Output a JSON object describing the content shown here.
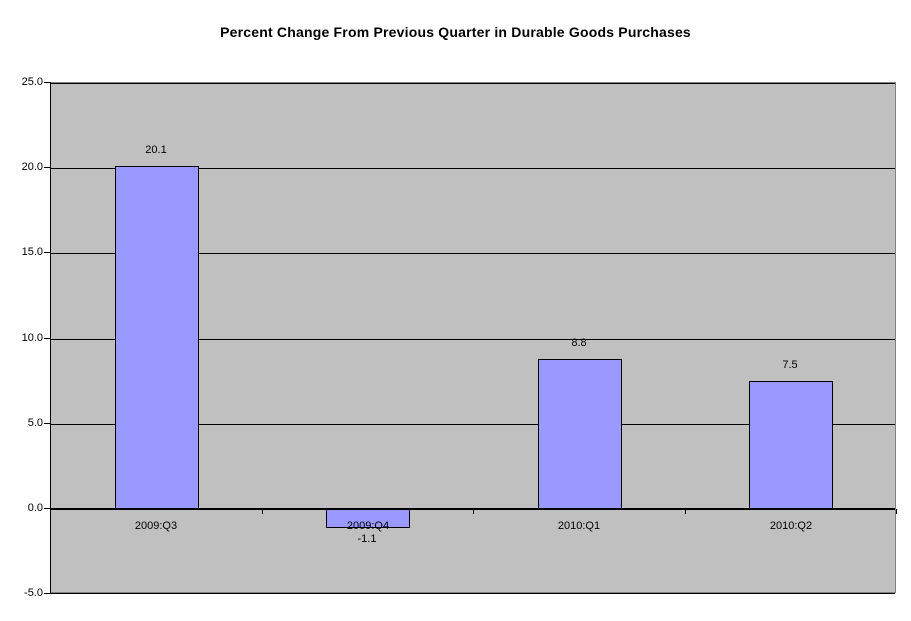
{
  "chart_data": {
    "type": "bar",
    "title": "Percent Change From Previous Quarter in Durable Goods Purchases",
    "categories": [
      "2009:Q3",
      "2009:Q4",
      "2010:Q1",
      "2010:Q2"
    ],
    "values": [
      20.1,
      -1.1,
      8.8,
      7.5
    ],
    "value_labels": [
      "20.1",
      "-1.1",
      "8.8",
      "7.5"
    ],
    "xlabel": "",
    "ylabel": "",
    "ylim": [
      -5,
      25
    ],
    "ytick_step": 5,
    "ytick_labels": [
      "25.0",
      "20.0",
      "15.0",
      "10.0",
      "5.0",
      "0.0",
      "-5.0"
    ],
    "grid": true,
    "legend": "none",
    "colors": {
      "bar_fill": "#9999FF",
      "bar_border": "#000000",
      "plot_bg": "#C0C0C0",
      "gridline": "#000000",
      "axis": "#000000",
      "plot_border": "#808080",
      "background": "#FFFFFF",
      "text": "#000000"
    }
  }
}
